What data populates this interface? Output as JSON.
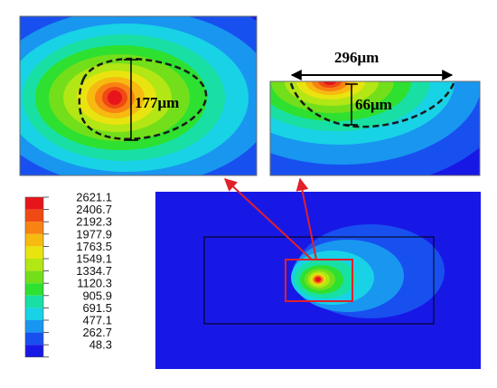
{
  "legend": {
    "colors": [
      "#e8141c",
      "#f04a14",
      "#f88212",
      "#f6ba10",
      "#e9e410",
      "#b2e614",
      "#72df1a",
      "#2ee030",
      "#18e0a4",
      "#18d2e6",
      "#1896f0",
      "#1850f0",
      "#1818e6"
    ],
    "values": [
      "2621.1",
      "2406.7",
      "2192.3",
      "1977.9",
      "1763.5",
      "1549.1",
      "1334.7",
      "1120.3",
      "905.9",
      "691.5",
      "477.1",
      "262.7",
      "48.3"
    ]
  },
  "zoom_top_view": {
    "width_label": "177μm"
  },
  "zoom_cross_section": {
    "length_label": "296μm",
    "depth_label": "66μm"
  },
  "annotation": {
    "arrow_color": "#e0202a",
    "box_color": "#e0202a"
  }
}
